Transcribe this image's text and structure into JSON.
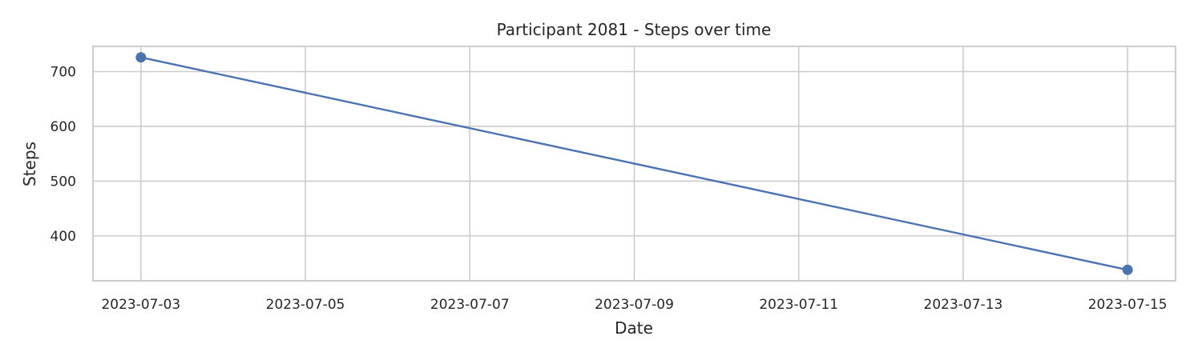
{
  "chart_data": {
    "type": "line",
    "title": "Participant 2081 - Steps over time",
    "xlabel": "Date",
    "ylabel": "Steps",
    "x": [
      "2023-07-03",
      "2023-07-15"
    ],
    "series": [
      {
        "values": [
          726,
          338
        ],
        "color": "#4c72b0"
      }
    ],
    "xlim": [
      "2023-07-02T10:00",
      "2023-07-15T14:00"
    ],
    "ylim": [
      318,
      746
    ],
    "x_ticks": [
      "2023-07-03",
      "2023-07-05",
      "2023-07-07",
      "2023-07-09",
      "2023-07-11",
      "2023-07-13",
      "2023-07-15"
    ],
    "y_ticks": [
      400,
      500,
      600,
      700
    ],
    "grid": true,
    "legend": false
  }
}
